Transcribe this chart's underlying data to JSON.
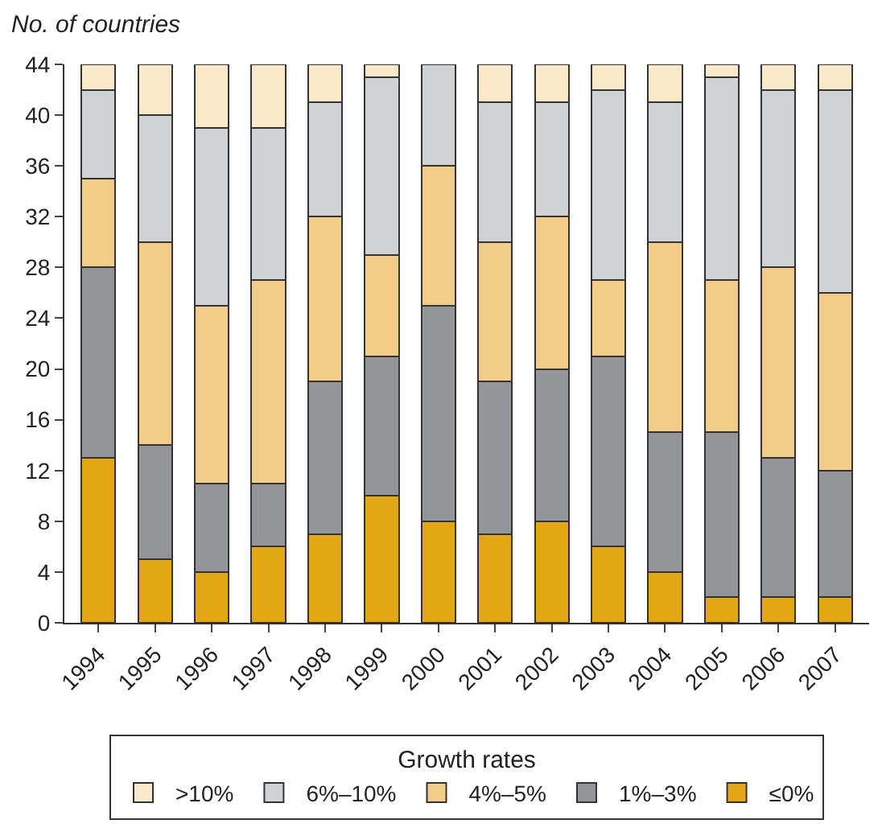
{
  "chart_data": {
    "type": "bar",
    "stacked": true,
    "ylabel": "No. of countries",
    "legend_title": "Growth rates",
    "legend": "bottom",
    "categories": [
      "1994",
      "1995",
      "1996",
      "1997",
      "1998",
      "1999",
      "2000",
      "2001",
      "2002",
      "2003",
      "2004",
      "2005",
      "2006",
      "2007"
    ],
    "ylim": [
      0,
      44
    ],
    "yticks": [
      0,
      4,
      8,
      12,
      16,
      20,
      24,
      28,
      32,
      36,
      40,
      44
    ],
    "series": [
      {
        "name": "≤0%",
        "color": "#e5a614",
        "values": [
          13,
          5,
          4,
          6,
          7,
          10,
          8,
          7,
          8,
          6,
          4,
          2,
          2,
          2
        ]
      },
      {
        "name": "1%–3%",
        "color": "#949598",
        "values": [
          15,
          9,
          7,
          5,
          12,
          11,
          17,
          12,
          12,
          15,
          11,
          13,
          11,
          10
        ]
      },
      {
        "name": "4%–5%",
        "color": "#f3cc89",
        "values": [
          7,
          16,
          14,
          16,
          13,
          8,
          11,
          11,
          12,
          6,
          15,
          12,
          15,
          14
        ]
      },
      {
        "name": "6%–10%",
        "color": "#d1d2d4",
        "values": [
          7,
          10,
          14,
          12,
          9,
          14,
          8,
          11,
          9,
          15,
          11,
          16,
          14,
          16
        ]
      },
      {
        "name": ">10%",
        "color": "#fbe9c9",
        "values": [
          2,
          4,
          5,
          5,
          3,
          1,
          0,
          3,
          3,
          2,
          3,
          1,
          2,
          2
        ]
      }
    ]
  }
}
